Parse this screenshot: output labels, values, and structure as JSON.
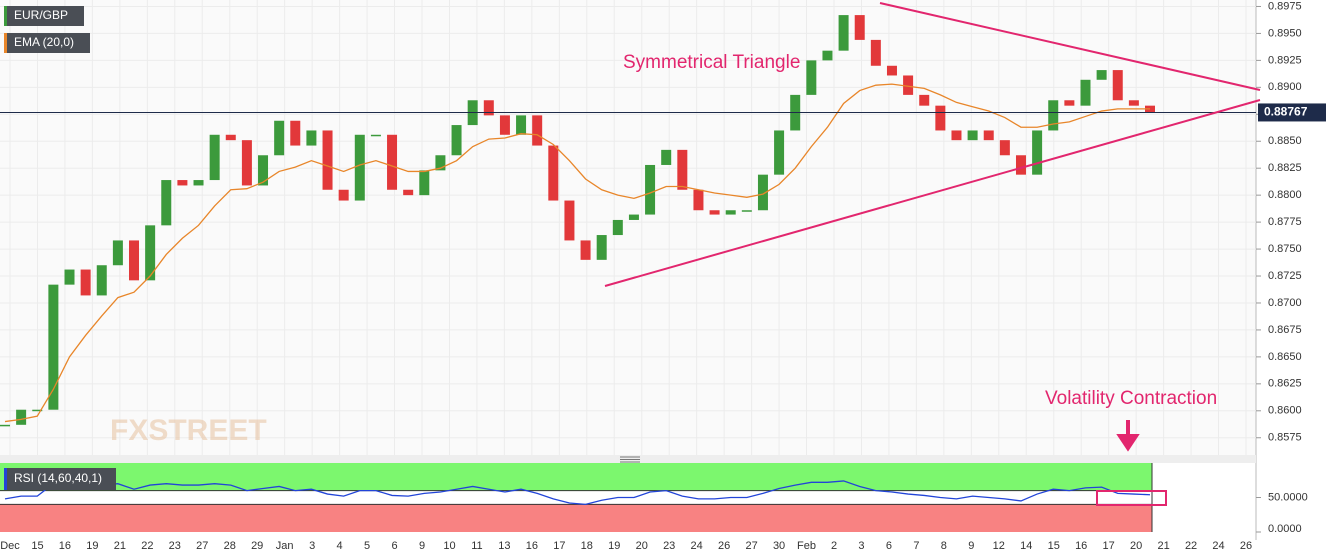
{
  "chart_data": [
    {
      "type": "candlestick",
      "series": [
        {
          "name": "EUR/GBP",
          "type": "candlestick",
          "up_color": "#3c9a3c",
          "down_color": "#e2383a",
          "values": [
            0.8587,
            0.8601,
            0.8601,
            0.8717,
            0.8731,
            0.8707,
            0.8735,
            0.8758,
            0.8721,
            0.8772,
            0.8814,
            0.8809,
            0.8814,
            0.8856,
            0.8851,
            0.8809,
            0.8837,
            0.8869,
            0.8846,
            0.886,
            0.8805,
            0.8795,
            0.8856,
            0.8856,
            0.8805,
            0.88,
            0.8823,
            0.8837,
            0.8865,
            0.8888,
            0.8874,
            0.8856,
            0.8874,
            0.8846,
            0.8795,
            0.8758,
            0.874,
            0.8763,
            0.8777,
            0.8782,
            0.8828,
            0.8842,
            0.8805,
            0.8786,
            0.8782,
            0.8786,
            0.8786,
            0.8819,
            0.886,
            0.8893,
            0.8925,
            0.8934,
            0.8967,
            0.8944,
            0.892,
            0.8911,
            0.8893,
            0.8883,
            0.886,
            0.8851,
            0.886,
            0.8851,
            0.8837,
            0.8819,
            0.886,
            0.8888,
            0.8883,
            0.8907,
            0.8916,
            0.8888,
            0.8883,
            0.8877
          ]
        },
        {
          "name": "EMA (20,0)",
          "type": "line",
          "color": "#e8862a",
          "values": [
            0.859,
            0.8592,
            0.8595,
            0.862,
            0.865,
            0.867,
            0.8688,
            0.8705,
            0.871,
            0.8725,
            0.8745,
            0.876,
            0.8772,
            0.879,
            0.8805,
            0.8806,
            0.8812,
            0.8822,
            0.8826,
            0.8832,
            0.8827,
            0.8822,
            0.8828,
            0.8832,
            0.8827,
            0.8822,
            0.8822,
            0.8825,
            0.8832,
            0.8845,
            0.8852,
            0.8853,
            0.8857,
            0.8856,
            0.8847,
            0.8832,
            0.8815,
            0.8805,
            0.88,
            0.8797,
            0.8802,
            0.8808,
            0.8808,
            0.8805,
            0.8802,
            0.88,
            0.8798,
            0.8801,
            0.881,
            0.8825,
            0.8845,
            0.8863,
            0.8885,
            0.8897,
            0.8902,
            0.8903,
            0.8901,
            0.8899,
            0.8893,
            0.8886,
            0.8882,
            0.8878,
            0.8872,
            0.8863,
            0.8863,
            0.8866,
            0.8868,
            0.8873,
            0.8878,
            0.888,
            0.888,
            0.888
          ]
        }
      ],
      "last_price": 0.88767,
      "ylim": [
        0.8559,
        0.8981
      ],
      "yticks": [
        {
          "value": 0.8575,
          "label": "0.8575"
        },
        {
          "value": 0.86,
          "label": "0.8600"
        },
        {
          "value": 0.8625,
          "label": "0.8625"
        },
        {
          "value": 0.865,
          "label": "0.8650"
        },
        {
          "value": 0.8675,
          "label": "0.8675"
        },
        {
          "value": 0.87,
          "label": "0.8700"
        },
        {
          "value": 0.8725,
          "label": "0.8725"
        },
        {
          "value": 0.875,
          "label": "0.8750"
        },
        {
          "value": 0.8775,
          "label": "0.8775"
        },
        {
          "value": 0.88,
          "label": "0.8800"
        },
        {
          "value": 0.8825,
          "label": "0.8825"
        },
        {
          "value": 0.885,
          "label": "0.8850"
        },
        {
          "value": 0.8875,
          "label": "0.8875"
        },
        {
          "value": 0.89,
          "label": "0.8900"
        },
        {
          "value": 0.8925,
          "label": "0.8925"
        },
        {
          "value": 0.895,
          "label": "0.8950"
        },
        {
          "value": 0.8975,
          "label": "0.8975"
        }
      ],
      "x_axis_labels": [
        "Dec",
        "15",
        "16",
        "19",
        "21",
        "22",
        "23",
        "27",
        "28",
        "29",
        "Jan",
        "3",
        "4",
        "5",
        "6",
        "9",
        "10",
        "11",
        "13",
        "16",
        "17",
        "18",
        "19",
        "20",
        "23",
        "24",
        "26",
        "27",
        "30",
        "Feb",
        "2",
        "3",
        "6",
        "7",
        "8",
        "9",
        "12",
        "14",
        "15",
        "16",
        "17",
        "20",
        "21",
        "22",
        "24",
        "26"
      ],
      "annotations": [
        "Symmetrical Triangle",
        "Volatility Contraction"
      ],
      "watermark": "FXSTREET"
    },
    {
      "type": "line",
      "series": [
        {
          "name": "RSI (14,60,40,1)",
          "color": "#2244d8",
          "values": [
            48,
            52,
            52,
            70,
            70,
            65,
            68,
            70,
            62,
            68,
            70,
            68,
            68,
            70,
            68,
            60,
            63,
            66,
            60,
            62,
            55,
            52,
            60,
            60,
            53,
            52,
            56,
            58,
            62,
            66,
            62,
            58,
            62,
            56,
            48,
            42,
            40,
            46,
            50,
            50,
            58,
            60,
            52,
            48,
            48,
            50,
            50,
            56,
            63,
            68,
            72,
            72,
            74,
            66,
            60,
            58,
            55,
            53,
            50,
            48,
            52,
            50,
            48,
            45,
            55,
            62,
            60,
            64,
            65,
            56,
            55,
            54
          ]
        }
      ],
      "upper_band": 60,
      "lower_band": 40,
      "ylim": [
        0,
        100
      ],
      "yticks": [
        {
          "value": 0,
          "label": "0.0000"
        },
        {
          "value": 50,
          "label": "50.0000"
        }
      ]
    }
  ]
}
